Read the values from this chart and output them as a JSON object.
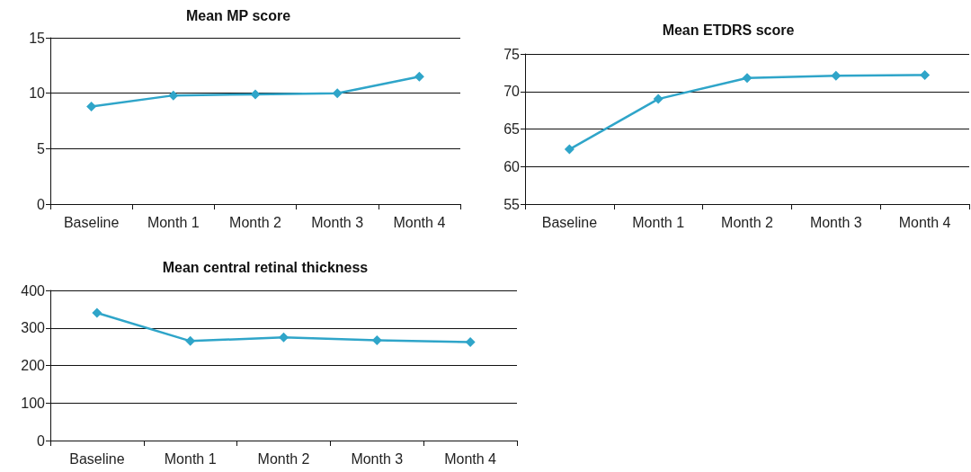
{
  "chart_data": [
    {
      "type": "line",
      "title": "Mean MP score",
      "categories": [
        "Baseline",
        "Month 1",
        "Month 2",
        "Month 3",
        "Month 4"
      ],
      "series": [
        {
          "color": "#2fa5c9",
          "values": [
            8.8,
            9.8,
            9.9,
            10.0,
            11.5
          ]
        }
      ],
      "ylim": [
        0,
        15
      ],
      "yticks": [
        0,
        5,
        10,
        15
      ],
      "grid": "y",
      "marker": "diamond"
    },
    {
      "type": "line",
      "title": "Mean ETDRS score",
      "categories": [
        "Baseline",
        "Month 1",
        "Month 2",
        "Month 3",
        "Month 4"
      ],
      "series": [
        {
          "color": "#2fa5c9",
          "values": [
            62.3,
            69.0,
            71.8,
            72.1,
            72.2
          ]
        }
      ],
      "ylim": [
        55,
        75
      ],
      "yticks": [
        55,
        60,
        65,
        70,
        75
      ],
      "grid": "y",
      "marker": "diamond"
    },
    {
      "type": "line",
      "title": "Mean central retinal thickness",
      "categories": [
        "Baseline",
        "Month 1",
        "Month 2",
        "Month 3",
        "Month 4"
      ],
      "series": [
        {
          "color": "#2fa5c9",
          "values": [
            340,
            265,
            275,
            267,
            262
          ]
        }
      ],
      "ylim": [
        0,
        400
      ],
      "yticks": [
        0,
        100,
        200,
        300,
        400
      ],
      "grid": "y",
      "marker": "diamond"
    }
  ]
}
